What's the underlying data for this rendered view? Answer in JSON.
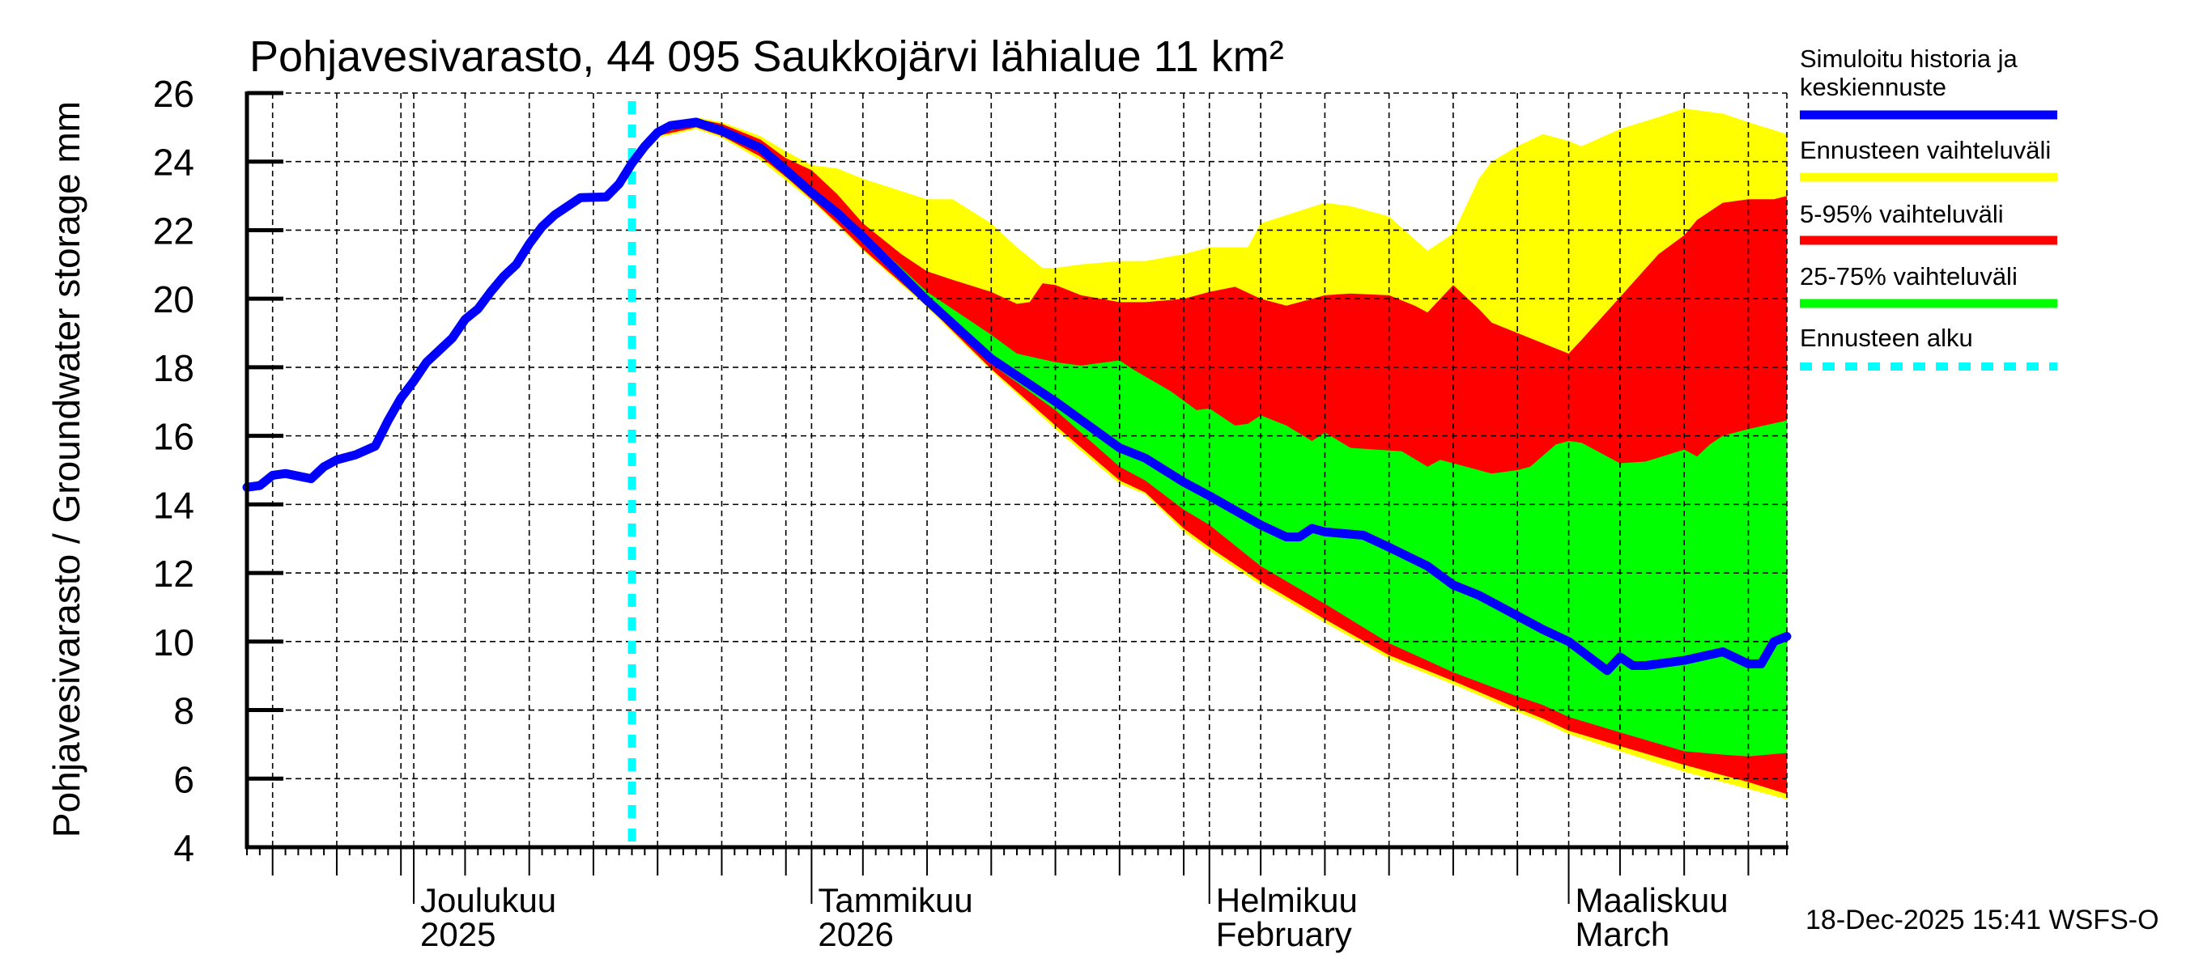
{
  "chart_data": {
    "type": "area",
    "title": "Pohjavesivarasto, 44 095 Saukkojärvi lähialue 11 km²",
    "ylabel": "Pohjavesivarasto / Groundwater storage   mm",
    "xlabel": "",
    "ylim": [
      4,
      26
    ],
    "yticks": [
      4,
      6,
      8,
      10,
      12,
      14,
      16,
      18,
      20,
      22,
      24,
      26
    ],
    "x_range": [
      "2025-11-18",
      "2026-03-18"
    ],
    "x_units": "days since 2025-11-18",
    "x_max_day": 120,
    "grid": true,
    "month_labels": [
      {
        "day": 13,
        "line1": "Joulukuu",
        "line2": "2025"
      },
      {
        "day": 44,
        "line1": "Tammikuu",
        "line2": "2026"
      },
      {
        "day": 75,
        "line1": "Helmikuu",
        "line2": "February"
      },
      {
        "day": 103,
        "line1": "Maaliskuu",
        "line2": "March"
      }
    ],
    "month_start_days": [
      13,
      44,
      75,
      103
    ],
    "gridline_days": [
      2,
      7,
      12,
      13,
      17,
      22,
      27,
      32,
      37,
      42,
      44,
      48,
      53,
      58,
      63,
      68,
      73,
      75,
      79,
      84,
      89,
      94,
      99,
      103,
      107,
      112,
      117
    ],
    "forecast_start_day": 30,
    "legend_position": "right",
    "series": [
      {
        "name": "Ennusteen vaihteluväli",
        "kind": "band",
        "color": "#ffff00",
        "upper": [
          [
            30,
            24.0
          ],
          [
            32,
            25.0
          ],
          [
            35,
            25.3
          ],
          [
            37,
            25.15
          ],
          [
            40,
            24.75
          ],
          [
            42,
            24.3
          ],
          [
            44,
            23.9
          ],
          [
            46,
            23.8
          ],
          [
            48,
            23.5
          ],
          [
            53,
            22.9
          ],
          [
            55,
            22.9
          ],
          [
            58,
            22.2
          ],
          [
            60,
            21.5
          ],
          [
            62,
            20.9
          ],
          [
            63,
            20.9
          ],
          [
            65,
            21.0
          ],
          [
            68,
            21.1
          ],
          [
            70,
            21.1
          ],
          [
            73,
            21.3
          ],
          [
            75,
            21.5
          ],
          [
            78,
            21.5
          ],
          [
            79,
            22.2
          ],
          [
            84,
            22.8
          ],
          [
            86,
            22.7
          ],
          [
            89,
            22.4
          ],
          [
            92,
            21.4
          ],
          [
            94,
            21.9
          ],
          [
            96,
            23.5
          ],
          [
            97,
            24.0
          ],
          [
            99,
            24.45
          ],
          [
            101,
            24.8
          ],
          [
            103,
            24.6
          ],
          [
            104,
            24.45
          ],
          [
            107,
            24.95
          ],
          [
            110,
            25.3
          ],
          [
            112,
            25.55
          ],
          [
            115,
            25.4
          ],
          [
            117,
            25.15
          ],
          [
            120,
            24.8
          ]
        ],
        "lower": [
          [
            30,
            24.0
          ],
          [
            32,
            24.7
          ],
          [
            35,
            24.95
          ],
          [
            37,
            24.7
          ],
          [
            40,
            24.05
          ],
          [
            42,
            23.45
          ],
          [
            44,
            22.85
          ],
          [
            46,
            22.15
          ],
          [
            48,
            21.4
          ],
          [
            53,
            19.75
          ],
          [
            58,
            17.9
          ],
          [
            63,
            16.2
          ],
          [
            68,
            14.6
          ],
          [
            70,
            14.3
          ],
          [
            73,
            13.2
          ],
          [
            75,
            12.65
          ],
          [
            79,
            11.65
          ],
          [
            84,
            10.55
          ],
          [
            89,
            9.5
          ],
          [
            94,
            8.75
          ],
          [
            99,
            7.95
          ],
          [
            101,
            7.65
          ],
          [
            103,
            7.3
          ],
          [
            107,
            6.8
          ],
          [
            112,
            6.2
          ],
          [
            117,
            5.7
          ],
          [
            120,
            5.4
          ]
        ]
      },
      {
        "name": "5-95% vaihteluväli",
        "kind": "band",
        "color": "#ff0000",
        "upper": [
          [
            30,
            24.0
          ],
          [
            32,
            24.9
          ],
          [
            35,
            25.25
          ],
          [
            37,
            25.1
          ],
          [
            40,
            24.65
          ],
          [
            42,
            24.1
          ],
          [
            44,
            23.75
          ],
          [
            46,
            23.05
          ],
          [
            48,
            22.2
          ],
          [
            51,
            21.3
          ],
          [
            53,
            20.8
          ],
          [
            55,
            20.55
          ],
          [
            58,
            20.2
          ],
          [
            60,
            19.85
          ],
          [
            61,
            19.9
          ],
          [
            62,
            20.45
          ],
          [
            63,
            20.4
          ],
          [
            65,
            20.1
          ],
          [
            68,
            19.9
          ],
          [
            70,
            19.9
          ],
          [
            73,
            20.0
          ],
          [
            75,
            20.2
          ],
          [
            77,
            20.35
          ],
          [
            79,
            20.0
          ],
          [
            81,
            19.8
          ],
          [
            83,
            20.0
          ],
          [
            84,
            20.1
          ],
          [
            86,
            20.15
          ],
          [
            89,
            20.1
          ],
          [
            91,
            19.8
          ],
          [
            92,
            19.6
          ],
          [
            94,
            20.4
          ],
          [
            96,
            19.7
          ],
          [
            97,
            19.3
          ],
          [
            99,
            19.0
          ],
          [
            101,
            18.7
          ],
          [
            103,
            18.4
          ],
          [
            104,
            18.8
          ],
          [
            107,
            20.05
          ],
          [
            110,
            21.3
          ],
          [
            112,
            21.85
          ],
          [
            113,
            22.3
          ],
          [
            115,
            22.8
          ],
          [
            117,
            22.9
          ],
          [
            119,
            22.9
          ],
          [
            120,
            23.0
          ]
        ],
        "lower": [
          [
            30,
            24.0
          ],
          [
            32,
            24.75
          ],
          [
            35,
            25.0
          ],
          [
            37,
            24.75
          ],
          [
            40,
            24.15
          ],
          [
            42,
            23.55
          ],
          [
            44,
            22.9
          ],
          [
            46,
            22.2
          ],
          [
            48,
            21.45
          ],
          [
            53,
            19.8
          ],
          [
            58,
            17.95
          ],
          [
            63,
            16.3
          ],
          [
            68,
            14.7
          ],
          [
            70,
            14.35
          ],
          [
            73,
            13.3
          ],
          [
            75,
            12.75
          ],
          [
            79,
            11.75
          ],
          [
            84,
            10.65
          ],
          [
            89,
            9.6
          ],
          [
            94,
            8.85
          ],
          [
            99,
            8.05
          ],
          [
            101,
            7.75
          ],
          [
            103,
            7.4
          ],
          [
            107,
            6.95
          ],
          [
            112,
            6.4
          ],
          [
            117,
            5.9
          ],
          [
            120,
            5.55
          ]
        ]
      },
      {
        "name": "25-75% vaihteluväli",
        "kind": "band",
        "color": "#00ff00",
        "upper": [
          [
            30,
            24.0
          ],
          [
            32,
            24.85
          ],
          [
            35,
            25.15
          ],
          [
            37,
            24.9
          ],
          [
            40,
            24.45
          ],
          [
            42,
            23.8
          ],
          [
            44,
            23.2
          ],
          [
            46,
            22.6
          ],
          [
            48,
            21.95
          ],
          [
            53,
            20.2
          ],
          [
            58,
            18.95
          ],
          [
            60,
            18.4
          ],
          [
            63,
            18.15
          ],
          [
            65,
            18.05
          ],
          [
            68,
            18.2
          ],
          [
            69,
            17.95
          ],
          [
            72,
            17.3
          ],
          [
            74,
            16.75
          ],
          [
            75,
            16.8
          ],
          [
            77,
            16.3
          ],
          [
            78,
            16.35
          ],
          [
            79,
            16.6
          ],
          [
            81,
            16.3
          ],
          [
            83,
            15.85
          ],
          [
            84,
            16.1
          ],
          [
            86,
            15.65
          ],
          [
            90,
            15.55
          ],
          [
            92,
            15.1
          ],
          [
            93,
            15.3
          ],
          [
            97,
            14.9
          ],
          [
            99,
            15.0
          ],
          [
            100,
            15.1
          ],
          [
            102,
            15.75
          ],
          [
            103,
            15.85
          ],
          [
            104,
            15.8
          ],
          [
            106,
            15.4
          ],
          [
            107,
            15.2
          ],
          [
            109,
            15.25
          ],
          [
            112,
            15.6
          ],
          [
            113,
            15.4
          ],
          [
            114,
            15.75
          ],
          [
            115,
            16.0
          ],
          [
            117,
            16.2
          ],
          [
            120,
            16.45
          ]
        ],
        "lower": [
          [
            30,
            24.0
          ],
          [
            32,
            24.8
          ],
          [
            35,
            25.1
          ],
          [
            37,
            24.85
          ],
          [
            40,
            24.3
          ],
          [
            42,
            23.65
          ],
          [
            44,
            23.0
          ],
          [
            46,
            22.35
          ],
          [
            48,
            21.65
          ],
          [
            53,
            19.9
          ],
          [
            58,
            18.1
          ],
          [
            63,
            16.75
          ],
          [
            68,
            15.1
          ],
          [
            70,
            14.7
          ],
          [
            73,
            13.85
          ],
          [
            75,
            13.4
          ],
          [
            79,
            12.2
          ],
          [
            84,
            11.1
          ],
          [
            89,
            9.95
          ],
          [
            94,
            9.1
          ],
          [
            99,
            8.4
          ],
          [
            101,
            8.15
          ],
          [
            103,
            7.8
          ],
          [
            107,
            7.35
          ],
          [
            112,
            6.8
          ],
          [
            115,
            6.7
          ],
          [
            117,
            6.65
          ],
          [
            120,
            6.75
          ]
        ]
      },
      {
        "name": "Simuloitu historia ja keskiennuste",
        "kind": "line",
        "color": "#0000ff",
        "points": [
          [
            0,
            14.5
          ],
          [
            1,
            14.55
          ],
          [
            2,
            14.85
          ],
          [
            3,
            14.9
          ],
          [
            5,
            14.75
          ],
          [
            6,
            15.1
          ],
          [
            7,
            15.3
          ],
          [
            8.5,
            15.45
          ],
          [
            10,
            15.7
          ],
          [
            11,
            16.45
          ],
          [
            12,
            17.1
          ],
          [
            13,
            17.6
          ],
          [
            14,
            18.15
          ],
          [
            15,
            18.5
          ],
          [
            16,
            18.85
          ],
          [
            17,
            19.4
          ],
          [
            18,
            19.7
          ],
          [
            19,
            20.2
          ],
          [
            20,
            20.65
          ],
          [
            21,
            21.0
          ],
          [
            22,
            21.6
          ],
          [
            23,
            22.1
          ],
          [
            24,
            22.45
          ],
          [
            25,
            22.7
          ],
          [
            26,
            22.95
          ],
          [
            28,
            22.97
          ],
          [
            29,
            23.35
          ],
          [
            30,
            23.95
          ],
          [
            31,
            24.45
          ],
          [
            32,
            24.85
          ],
          [
            33,
            25.05
          ],
          [
            35,
            25.15
          ],
          [
            37,
            24.9
          ],
          [
            40,
            24.4
          ],
          [
            42,
            23.75
          ],
          [
            44,
            23.1
          ],
          [
            46,
            22.5
          ],
          [
            48,
            21.8
          ],
          [
            53,
            19.95
          ],
          [
            58,
            18.25
          ],
          [
            63,
            17.0
          ],
          [
            68,
            15.65
          ],
          [
            70,
            15.35
          ],
          [
            73,
            14.65
          ],
          [
            75,
            14.25
          ],
          [
            79,
            13.4
          ],
          [
            81,
            13.05
          ],
          [
            82,
            13.05
          ],
          [
            83,
            13.3
          ],
          [
            84,
            13.2
          ],
          [
            87,
            13.1
          ],
          [
            89,
            12.75
          ],
          [
            92,
            12.2
          ],
          [
            94,
            11.65
          ],
          [
            96,
            11.35
          ],
          [
            99,
            10.75
          ],
          [
            101,
            10.35
          ],
          [
            103,
            10.0
          ],
          [
            106,
            9.15
          ],
          [
            107,
            9.55
          ],
          [
            108,
            9.3
          ],
          [
            109,
            9.3
          ],
          [
            112,
            9.45
          ],
          [
            115,
            9.7
          ],
          [
            117,
            9.35
          ],
          [
            118,
            9.35
          ],
          [
            119,
            10.0
          ],
          [
            120,
            10.15
          ]
        ]
      }
    ]
  },
  "legend": {
    "items": [
      {
        "label_lines": [
          "Simuloitu historia ja",
          "keskiennuste"
        ],
        "color": "#0000ff",
        "style": "solid"
      },
      {
        "label_lines": [
          "Ennusteen vaihteluväli"
        ],
        "color": "#ffff00",
        "style": "solid"
      },
      {
        "label_lines": [
          "5-95% vaihteluväli"
        ],
        "color": "#ff0000",
        "style": "solid"
      },
      {
        "label_lines": [
          "25-75% vaihteluväli"
        ],
        "color": "#00ff00",
        "style": "solid"
      },
      {
        "label_lines": [
          "Ennusteen alku"
        ],
        "color": "#00ffff",
        "style": "dashed"
      }
    ]
  },
  "footer": {
    "timestamp": "18-Dec-2025 15:41 WSFS-O"
  }
}
